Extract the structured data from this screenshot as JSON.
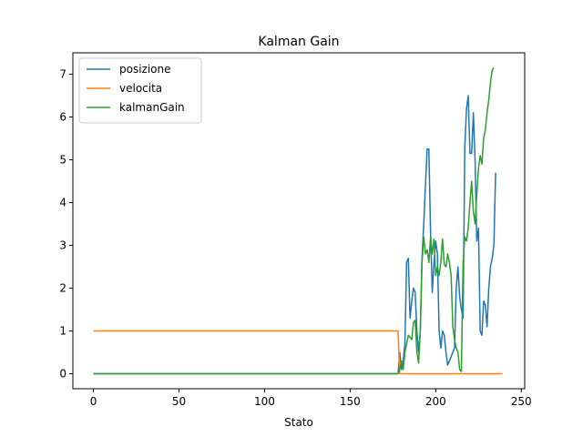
{
  "chart_data": {
    "type": "line",
    "title": "Kalman Gain",
    "xlabel": "Stato",
    "ylabel": "",
    "xlim": [
      -12,
      252
    ],
    "ylim": [
      -0.35,
      7.5
    ],
    "xticks": [
      0,
      50,
      100,
      150,
      200,
      250
    ],
    "yticks": [
      0,
      1,
      2,
      3,
      4,
      5,
      6,
      7
    ],
    "grid": false,
    "legend": "top-left",
    "series": [
      {
        "name": "posizione",
        "color": "#1f77b4",
        "points": [
          [
            0,
            0.0
          ],
          [
            178,
            0.0
          ],
          [
            179,
            0.5
          ],
          [
            180,
            0.1
          ],
          [
            181,
            0.3
          ],
          [
            182,
            0.7
          ],
          [
            183,
            2.6
          ],
          [
            184,
            2.7
          ],
          [
            185,
            1.3
          ],
          [
            186,
            1.7
          ],
          [
            187,
            2.0
          ],
          [
            188,
            1.9
          ],
          [
            189,
            1.0
          ],
          [
            190,
            0.5
          ],
          [
            191,
            1.0
          ],
          [
            192,
            2.7
          ],
          [
            193,
            3.5
          ],
          [
            194,
            4.4
          ],
          [
            195,
            5.25
          ],
          [
            196,
            5.25
          ],
          [
            197,
            3.3
          ],
          [
            198,
            1.9
          ],
          [
            199,
            2.6
          ],
          [
            200,
            3.1
          ],
          [
            201,
            2.8
          ],
          [
            202,
            1.0
          ],
          [
            203,
            0.6
          ],
          [
            204,
            1.0
          ],
          [
            205,
            0.9
          ],
          [
            206,
            0.5
          ],
          [
            207,
            0.2
          ],
          [
            208,
            0.3
          ],
          [
            209,
            0.4
          ],
          [
            210,
            0.5
          ],
          [
            211,
            0.6
          ],
          [
            212,
            2.0
          ],
          [
            213,
            2.5
          ],
          [
            214,
            1.8
          ],
          [
            215,
            1.5
          ],
          [
            216,
            1.3
          ],
          [
            217,
            5.3
          ],
          [
            218,
            6.2
          ],
          [
            219,
            6.5
          ],
          [
            220,
            5.15
          ],
          [
            221,
            5.15
          ],
          [
            222,
            6.1
          ],
          [
            223,
            5.0
          ],
          [
            224,
            3.1
          ],
          [
            225,
            3.4
          ],
          [
            226,
            1.0
          ],
          [
            227,
            0.9
          ],
          [
            228,
            1.7
          ],
          [
            229,
            1.6
          ],
          [
            230,
            1.1
          ],
          [
            231,
            2.0
          ],
          [
            232,
            2.5
          ],
          [
            233,
            2.7
          ],
          [
            234,
            3.0
          ],
          [
            235,
            4.7
          ]
        ]
      },
      {
        "name": "velocita",
        "color": "#ff7f0e",
        "points": [
          [
            0,
            1.0
          ],
          [
            178,
            1.0
          ],
          [
            179,
            0.0
          ],
          [
            239,
            0.0
          ]
        ]
      },
      {
        "name": "kalmanGain",
        "color": "#2ca02c",
        "points": [
          [
            0,
            0.0
          ],
          [
            178,
            0.0
          ],
          [
            179,
            0.1
          ],
          [
            180,
            0.3
          ],
          [
            181,
            0.1
          ],
          [
            182,
            0.5
          ],
          [
            183,
            0.7
          ],
          [
            184,
            0.9
          ],
          [
            185,
            0.85
          ],
          [
            186,
            0.8
          ],
          [
            187,
            1.2
          ],
          [
            188,
            1.25
          ],
          [
            189,
            0.5
          ],
          [
            190,
            0.25
          ],
          [
            191,
            1.0
          ],
          [
            192,
            2.6
          ],
          [
            193,
            3.2
          ],
          [
            194,
            2.8
          ],
          [
            195,
            2.9
          ],
          [
            196,
            2.6
          ],
          [
            197,
            3.2
          ],
          [
            198,
            2.8
          ],
          [
            199,
            3.15
          ],
          [
            200,
            2.3
          ],
          [
            201,
            2.5
          ],
          [
            202,
            2.3
          ],
          [
            203,
            2.6
          ],
          [
            204,
            3.15
          ],
          [
            205,
            2.55
          ],
          [
            206,
            2.5
          ],
          [
            207,
            2.8
          ],
          [
            208,
            2.6
          ],
          [
            209,
            2.3
          ],
          [
            210,
            1.1
          ],
          [
            211,
            0.8
          ],
          [
            212,
            0.6
          ],
          [
            213,
            0.5
          ],
          [
            214,
            0.1
          ],
          [
            215,
            0.05
          ],
          [
            216,
            2.6
          ],
          [
            217,
            3.2
          ],
          [
            218,
            3.1
          ],
          [
            219,
            3.4
          ],
          [
            220,
            4.0
          ],
          [
            221,
            4.5
          ],
          [
            222,
            3.8
          ],
          [
            223,
            3.5
          ],
          [
            224,
            4.2
          ],
          [
            225,
            4.8
          ],
          [
            226,
            5.1
          ],
          [
            227,
            4.9
          ],
          [
            228,
            5.5
          ],
          [
            229,
            5.7
          ],
          [
            230,
            6.1
          ],
          [
            231,
            6.4
          ],
          [
            232,
            6.8
          ],
          [
            233,
            7.1
          ],
          [
            234,
            7.15
          ]
        ]
      }
    ]
  }
}
